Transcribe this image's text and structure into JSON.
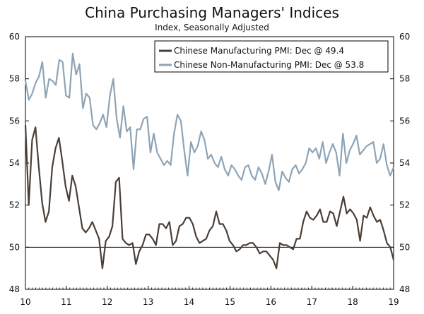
{
  "chart_data": {
    "type": "line",
    "title": "China Purchasing Managers' Indices",
    "subtitle": "Index, Seasonally Adjusted",
    "xlabel": "",
    "ylabel": "",
    "xlim": [
      10,
      19
    ],
    "ylim": [
      48,
      60
    ],
    "yticks": [
      48,
      50,
      52,
      54,
      56,
      58,
      60
    ],
    "xticks": [
      10,
      11,
      12,
      13,
      14,
      15,
      16,
      17,
      18,
      19
    ],
    "reference_line": 50,
    "legend_position": "top-right",
    "series": [
      {
        "name": "Chinese Manufacturing PMI: Dec @ 49.4",
        "color": "#4a3f37",
        "values": [
          55.8,
          52.0,
          55.1,
          55.7,
          53.8,
          52.1,
          51.2,
          51.7,
          53.8,
          54.7,
          55.2,
          54.1,
          52.9,
          52.2,
          53.4,
          52.9,
          51.9,
          50.9,
          50.7,
          50.9,
          51.2,
          50.8,
          50.4,
          49.0,
          50.3,
          50.5,
          51.0,
          53.1,
          53.3,
          50.4,
          50.2,
          50.1,
          50.2,
          49.2,
          49.8,
          50.1,
          50.6,
          50.6,
          50.4,
          50.1,
          51.1,
          51.1,
          50.9,
          51.2,
          50.1,
          50.3,
          51.0,
          51.1,
          51.4,
          51.4,
          51.1,
          50.5,
          50.2,
          50.3,
          50.4,
          50.8,
          51.0,
          51.7,
          51.1,
          51.1,
          50.8,
          50.3,
          50.1,
          49.8,
          49.9,
          50.1,
          50.1,
          50.2,
          50.2,
          50.0,
          49.7,
          49.8,
          49.8,
          49.6,
          49.4,
          49.0,
          50.2,
          50.1,
          50.1,
          50.0,
          49.9,
          50.4,
          50.4,
          51.2,
          51.7,
          51.4,
          51.3,
          51.5,
          51.8,
          51.2,
          51.2,
          51.7,
          51.6,
          51.0,
          51.7,
          52.4,
          51.6,
          51.8,
          51.6,
          51.3,
          50.3,
          51.5,
          51.4,
          51.9,
          51.5,
          51.2,
          51.3,
          50.8,
          50.2,
          50.0,
          49.4
        ]
      },
      {
        "name": "Chinese Non-Manufacturing PMI: Dec @ 53.8",
        "color": "#8ea4b6",
        "values": [
          57.9,
          57.0,
          57.3,
          57.8,
          58.1,
          58.8,
          57.1,
          58.0,
          57.9,
          57.7,
          58.9,
          58.8,
          57.2,
          57.1,
          59.2,
          58.2,
          58.7,
          56.6,
          57.3,
          57.1,
          55.8,
          55.6,
          55.9,
          56.3,
          55.7,
          57.2,
          58.0,
          56.1,
          55.2,
          56.7,
          55.5,
          55.7,
          53.7,
          55.6,
          55.6,
          56.1,
          56.2,
          54.5,
          55.4,
          54.5,
          54.2,
          53.9,
          54.1,
          53.9,
          55.4,
          56.3,
          56.0,
          54.6,
          53.4,
          55.0,
          54.5,
          54.8,
          55.5,
          55.1,
          54.2,
          54.4,
          54.0,
          53.8,
          54.3,
          53.7,
          53.4,
          53.9,
          53.7,
          53.4,
          53.2,
          53.8,
          53.9,
          53.4,
          53.2,
          53.8,
          53.5,
          53.0,
          53.6,
          54.4,
          53.1,
          52.7,
          53.6,
          53.3,
          53.1,
          53.7,
          53.9,
          53.5,
          53.7,
          54.0,
          54.7,
          54.5,
          54.7,
          54.2,
          55.0,
          54.0,
          54.5,
          54.9,
          54.5,
          53.4,
          55.4,
          54.0,
          54.6,
          54.9,
          55.3,
          54.4,
          54.6,
          54.8,
          54.9,
          55.0,
          54.0,
          54.2,
          54.9,
          53.9,
          53.4,
          53.8
        ]
      }
    ]
  }
}
